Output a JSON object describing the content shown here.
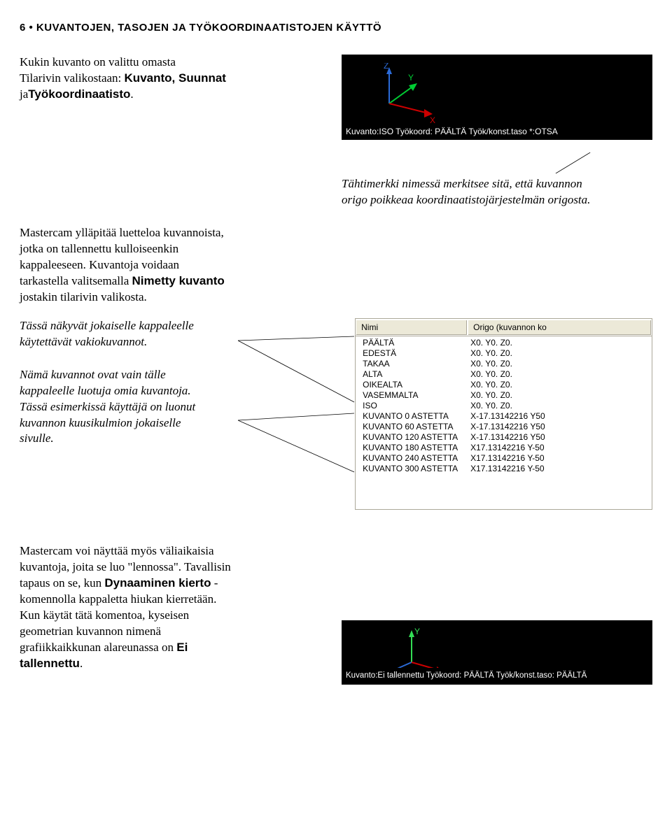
{
  "header": "6 • KUVANTOJEN, TASOJEN JA TYÖKOORDINAATISTOJEN KÄYTTÖ",
  "intro": {
    "line1": "Kukin kuvanto on valittu omasta",
    "line2a": "Tilarivin valikostaan: ",
    "bold1": "Kuvanto, Suunnat",
    "line3a": "ja",
    "bold2": "Työkoordinaatisto",
    "line3b": "."
  },
  "status1": {
    "axis": {
      "xColor": "#cc0000",
      "yColor": "#00cc33",
      "zColor": "#2b6bd8"
    },
    "text": "Kuvanto:ISO   Työkoord: PÄÄLTÄ   Työk/konst.taso *:OTSA"
  },
  "note1": {
    "l1": "Tähtimerkki nimessä merkitsee sitä, että kuvannon",
    "l2": "origo poikkeaa koordinaatistojärjestelmän origosta."
  },
  "para2": {
    "l1": "Mastercam ylläpitää luetteloa kuvannoista,",
    "l2": "jotka on tallennettu kulloiseenkin",
    "l3": "kappaleeseen. Kuvantoja voidaan",
    "l4a": "tarkastella valitsemalla ",
    "bold": "Nimetty kuvanto",
    "l5": "jostakin  tilarivin valikosta."
  },
  "ital1": {
    "l1": "Tässä näkyvät jokaiselle kappaleelle",
    "l2": "käytettävät vakiokuvannot."
  },
  "ital2": {
    "l1": "Nämä kuvannot ovat vain tälle",
    "l2": "kappaleelle luotuja omia kuvantoja.",
    "l3": "Tässä esimerkissä käyttäjä on luonut",
    "l4": "kuvannon kuusikulmion jokaiselle",
    "l5": "sivulle."
  },
  "table": {
    "colName": "Nimi",
    "colOrigo": "Origo (kuvannon ko",
    "rows": [
      {
        "n": "PÄÄLTÄ",
        "o": "X0. Y0. Z0."
      },
      {
        "n": "EDESTÄ",
        "o": "X0. Y0. Z0."
      },
      {
        "n": "TAKAA",
        "o": "X0. Y0. Z0."
      },
      {
        "n": "ALTA",
        "o": "X0. Y0. Z0."
      },
      {
        "n": "OIKEALTA",
        "o": "X0. Y0. Z0."
      },
      {
        "n": "VASEMMALTA",
        "o": "X0. Y0. Z0."
      },
      {
        "n": "ISO",
        "o": "X0. Y0. Z0."
      },
      {
        "n": "KUVANTO 0 ASTETTA",
        "o": "X-17.13142216 Y50"
      },
      {
        "n": "KUVANTO 60 ASTETTA",
        "o": "X-17.13142216 Y50"
      },
      {
        "n": "KUVANTO 120 ASTETTA",
        "o": "X-17.13142216 Y50"
      },
      {
        "n": "KUVANTO 180 ASTETTA",
        "o": "X17.13142216 Y-50"
      },
      {
        "n": "KUVANTO 240 ASTETTA",
        "o": "X17.13142216 Y-50"
      },
      {
        "n": "KUVANTO 300 ASTETTA",
        "o": "X17.13142216 Y-50"
      }
    ]
  },
  "para3": {
    "l1": "Mastercam voi näyttää myös väliaikaisia",
    "l2": "kuvantoja, joita se luo \"lennossa\". Tavallisin",
    "l3a": "tapaus on se, kun ",
    "bold1": "Dynaaminen kierto",
    "l3b": " -",
    "l4": "komennolla kappaletta hiukan kierretään.",
    "l5": "Kun käytät tätä komentoa, kyseisen",
    "l6": "geometrian kuvannon nimenä",
    "l7a": "grafiikkaikkunan alareunassa on ",
    "bold2": "Ei",
    "bold3": "tallennettu",
    "l8": "."
  },
  "status2": {
    "axis": {
      "xColor": "#cc0000",
      "yColor": "#33dd55",
      "zColor": "#2b6bd8"
    },
    "text": "Kuvanto:Ei tallennettu  Työkoord: PÄÄLTÄ  Työk/konst.taso: PÄÄLTÄ"
  }
}
